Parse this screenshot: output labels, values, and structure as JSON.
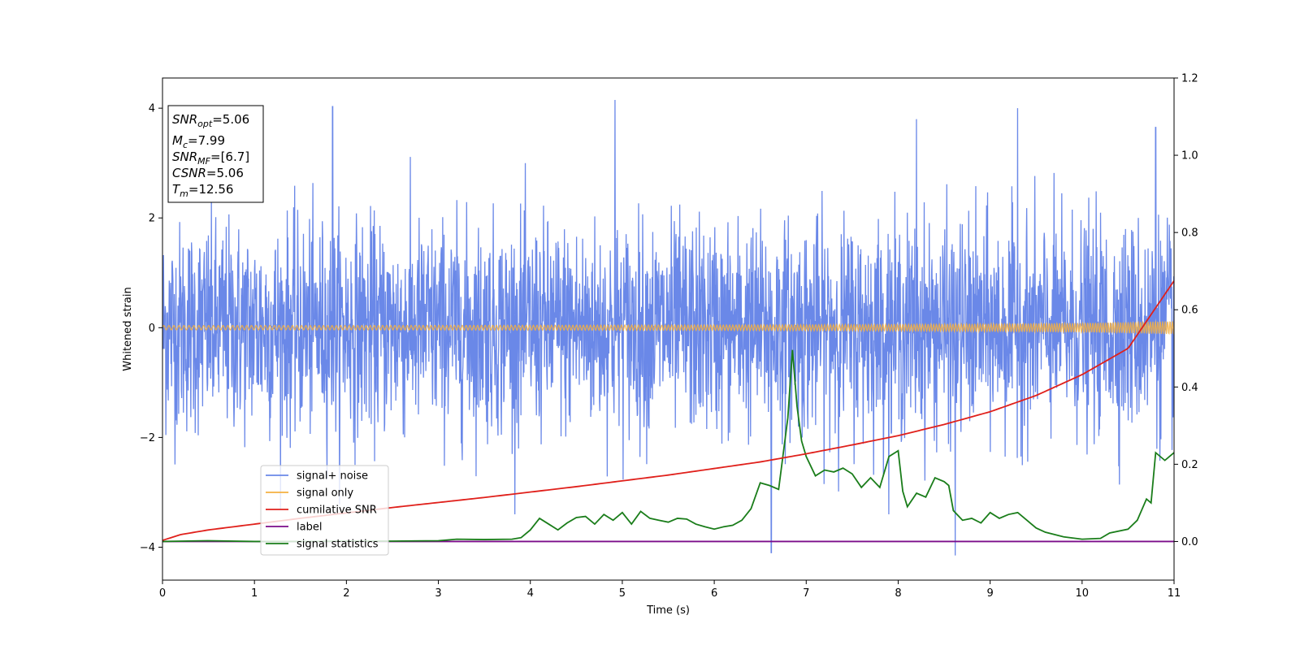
{
  "chart_data": {
    "type": "line",
    "xlabel": "Time (s)",
    "ylabel": "Whitened strain",
    "xlim": [
      0,
      11
    ],
    "ylim_left": [
      -4.6,
      4.55
    ],
    "ylim_right": [
      -0.1,
      1.2
    ],
    "x_ticks": [
      0,
      1,
      2,
      3,
      4,
      5,
      6,
      7,
      8,
      9,
      10,
      11
    ],
    "y_left_ticks": [
      -4,
      -2,
      0,
      2,
      4
    ],
    "y_right_ticks": [
      "0.0",
      "0.2",
      "0.4",
      "0.6",
      "0.8",
      "1.0",
      "1.2"
    ],
    "grid": false,
    "legend_position": "lower-left",
    "series": [
      {
        "name": "signal+ noise",
        "axis": "left",
        "color": "#6a88e8",
        "approx": "dense noise, std about 1.0, extremes near 4.2 and -4.1",
        "spikes": [
          {
            "x": 1.85,
            "y": 4.03
          },
          {
            "x": 4.92,
            "y": 4.15
          },
          {
            "x": 8.2,
            "y": 3.8
          },
          {
            "x": 9.3,
            "y": 4.0
          },
          {
            "x": 10.8,
            "y": 3.65
          },
          {
            "x": 6.62,
            "y": -4.1
          },
          {
            "x": 8.62,
            "y": -4.15
          }
        ]
      },
      {
        "name": "signal only",
        "axis": "left",
        "color": "#f5b041",
        "amplitude": {
          "x": [
            0,
            2,
            4,
            6,
            8,
            9,
            10,
            10.5,
            11
          ],
          "y": [
            0.04,
            0.04,
            0.045,
            0.05,
            0.06,
            0.07,
            0.085,
            0.1,
            0.12
          ]
        }
      },
      {
        "name": "cumilative SNR",
        "axis": "right",
        "color": "#e0201b",
        "x": [
          0,
          0.2,
          0.5,
          1,
          1.5,
          2,
          2.5,
          3,
          3.5,
          4,
          4.5,
          5,
          5.5,
          6,
          6.5,
          7,
          7.5,
          8,
          8.5,
          9,
          9.5,
          10,
          10.5,
          11
        ],
        "y": [
          0.003,
          0.018,
          0.03,
          0.045,
          0.06,
          0.074,
          0.088,
          0.101,
          0.114,
          0.128,
          0.142,
          0.157,
          0.172,
          0.189,
          0.206,
          0.227,
          0.25,
          0.274,
          0.303,
          0.336,
          0.378,
          0.432,
          0.5,
          0.675
        ]
      },
      {
        "name": "label",
        "axis": "right",
        "color": "#7b0c8a",
        "x": [
          0,
          11
        ],
        "y": [
          0,
          0
        ]
      },
      {
        "name": "signal statistics",
        "axis": "right",
        "color": "#1a7d1a",
        "x": [
          0,
          0.5,
          1,
          1.5,
          2,
          2.5,
          3,
          3.2,
          3.5,
          3.8,
          3.9,
          4,
          4.1,
          4.2,
          4.3,
          4.4,
          4.5,
          4.6,
          4.7,
          4.8,
          4.9,
          5.0,
          5.1,
          5.2,
          5.3,
          5.4,
          5.5,
          5.6,
          5.7,
          5.8,
          5.9,
          6.0,
          6.1,
          6.2,
          6.3,
          6.4,
          6.5,
          6.6,
          6.7,
          6.8,
          6.85,
          6.9,
          6.95,
          7.0,
          7.1,
          7.2,
          7.3,
          7.4,
          7.5,
          7.6,
          7.7,
          7.8,
          7.9,
          8.0,
          8.05,
          8.1,
          8.2,
          8.3,
          8.4,
          8.5,
          8.55,
          8.6,
          8.7,
          8.8,
          8.9,
          9.0,
          9.1,
          9.2,
          9.3,
          9.4,
          9.5,
          9.6,
          9.8,
          10.0,
          10.2,
          10.3,
          10.5,
          10.6,
          10.7,
          10.75,
          10.8,
          10.9,
          11
        ],
        "y": [
          0,
          0.002,
          0,
          0,
          0.001,
          0.001,
          0.002,
          0.006,
          0.005,
          0.006,
          0.01,
          0.03,
          0.06,
          0.045,
          0.03,
          0.048,
          0.062,
          0.065,
          0.045,
          0.07,
          0.055,
          0.075,
          0.045,
          0.078,
          0.06,
          0.055,
          0.05,
          0.06,
          0.058,
          0.045,
          0.038,
          0.032,
          0.038,
          0.042,
          0.055,
          0.085,
          0.152,
          0.145,
          0.135,
          0.32,
          0.496,
          0.35,
          0.26,
          0.22,
          0.17,
          0.185,
          0.18,
          0.19,
          0.175,
          0.14,
          0.165,
          0.14,
          0.22,
          0.235,
          0.13,
          0.09,
          0.125,
          0.115,
          0.165,
          0.155,
          0.145,
          0.08,
          0.055,
          0.06,
          0.048,
          0.075,
          0.06,
          0.07,
          0.075,
          0.055,
          0.035,
          0.024,
          0.012,
          0.006,
          0.008,
          0.022,
          0.032,
          0.055,
          0.11,
          0.1,
          0.23,
          0.21,
          0.23
        ]
      }
    ],
    "annotation": {
      "lines": [
        {
          "var": "SNR",
          "sub": "opt",
          "value": "=5.06"
        },
        {
          "var": "M",
          "sub": "c",
          "value": "=7.99"
        },
        {
          "var": "SNR",
          "sub": "MF",
          "value": "=[6.7]"
        },
        {
          "var": "CSNR",
          "sub": "",
          "value": "=5.06"
        },
        {
          "var": "T",
          "sub": "m",
          "value": "=12.56"
        }
      ]
    }
  }
}
